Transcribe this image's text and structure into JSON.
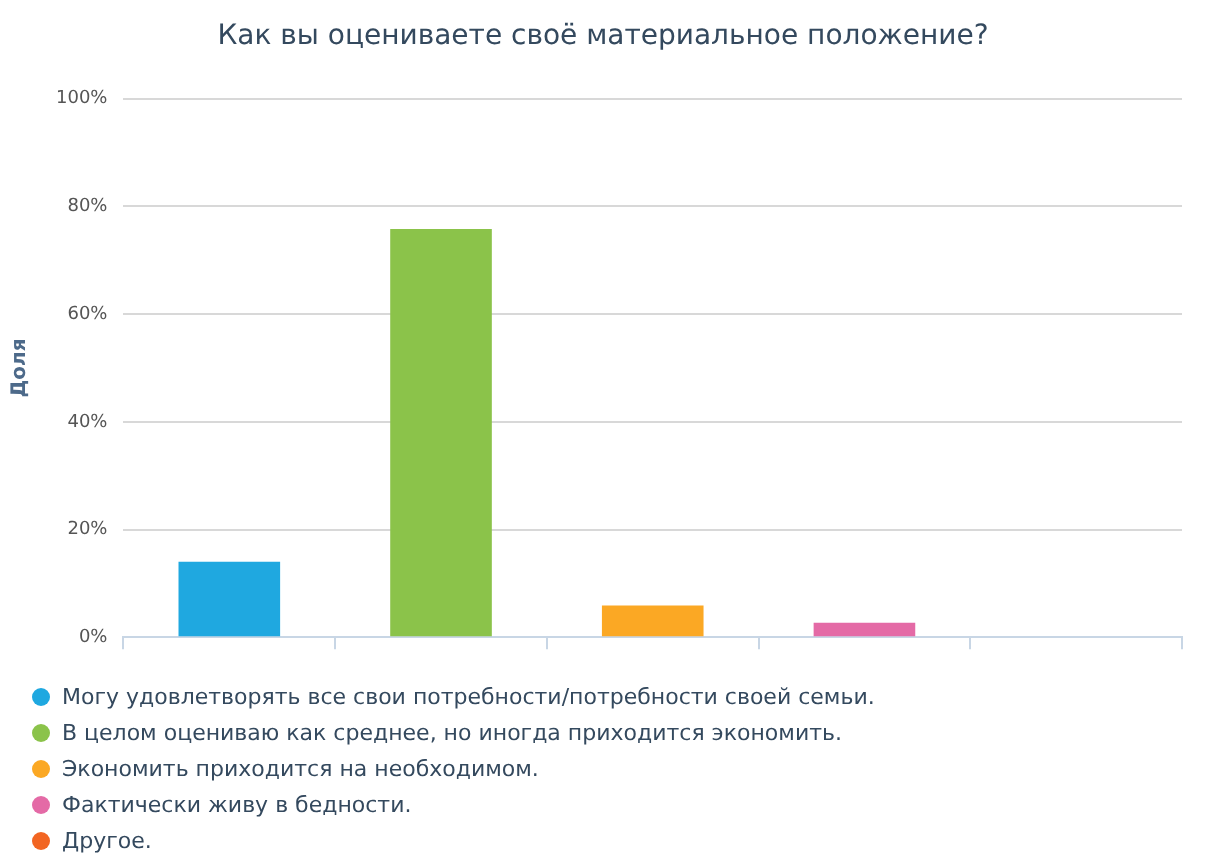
{
  "chart_data": {
    "type": "bar",
    "title": "Как вы оцениваете своё материальное положение?",
    "ylabel": "Доля",
    "categories": [
      null,
      null,
      null,
      null,
      null
    ],
    "series": [
      {
        "name": "Могу удовлетворять все свои потребности/потребности своей семьи.",
        "color": "#1fa8e0",
        "values": [
          14,
          null,
          null,
          null,
          null
        ]
      },
      {
        "name": "В целом оцениваю как среднее, но иногда приходится экономить.",
        "color": "#8bc34a",
        "values": [
          null,
          75.8,
          null,
          null,
          null
        ]
      },
      {
        "name": "Экономить приходится на необходимом.",
        "color": "#fba824",
        "values": [
          null,
          null,
          5.9,
          null,
          null
        ]
      },
      {
        "name": "Фактически живу в бедности.",
        "color": "#e46aa6",
        "values": [
          null,
          null,
          null,
          2.7,
          null
        ]
      },
      {
        "name": "Другое.",
        "color": "#f26522",
        "values": [
          null,
          null,
          null,
          null,
          0
        ]
      }
    ],
    "ylim": [
      0,
      100
    ],
    "yticks": [
      {
        "value": 0,
        "label": "0%"
      },
      {
        "value": 20,
        "label": "20%"
      },
      {
        "value": 40,
        "label": "40%"
      },
      {
        "value": 60,
        "label": "60%"
      },
      {
        "value": 80,
        "label": "80%"
      },
      {
        "value": 100,
        "label": "100%"
      }
    ],
    "grid": "y",
    "legend": "bottom",
    "tick_labels": "y"
  }
}
